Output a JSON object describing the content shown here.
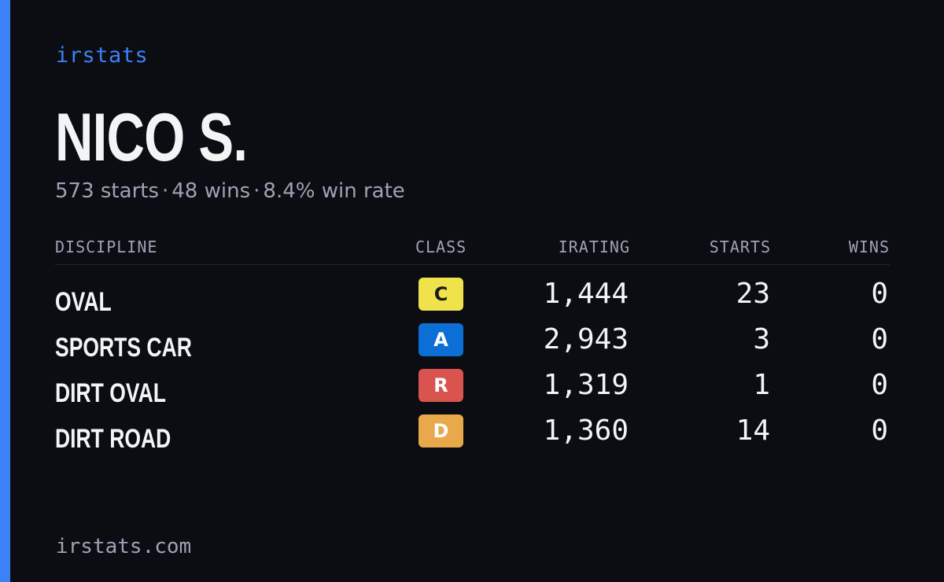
{
  "brand": "irstats",
  "driver": {
    "name": "NICO S."
  },
  "summary": {
    "starts": "573 starts",
    "wins": "48 wins",
    "win_rate": "8.4% win rate",
    "separator": "·"
  },
  "table": {
    "headers": {
      "discipline": "DISCIPLINE",
      "class": "CLASS",
      "irating": "IRATING",
      "starts": "STARTS",
      "wins": "WINS"
    },
    "rows": [
      {
        "discipline": "OVAL",
        "class": "C",
        "class_bg": "#f0e24a",
        "class_fg": "#1a1a1a",
        "irating": "1,444",
        "starts": "23",
        "wins": "0"
      },
      {
        "discipline": "SPORTS CAR",
        "class": "A",
        "class_bg": "#0b6fd6",
        "class_fg": "#ffffff",
        "irating": "2,943",
        "starts": "3",
        "wins": "0"
      },
      {
        "discipline": "DIRT OVAL",
        "class": "R",
        "class_bg": "#d9534f",
        "class_fg": "#ffffff",
        "irating": "1,319",
        "starts": "1",
        "wins": "0"
      },
      {
        "discipline": "DIRT ROAD",
        "class": "D",
        "class_bg": "#e9a94a",
        "class_fg": "#ffffff",
        "irating": "1,360",
        "starts": "14",
        "wins": "0"
      }
    ]
  },
  "footer": "irstats.com",
  "colors": {
    "accent": "#3b82f6",
    "background": "#0b0d13",
    "text_primary": "#f3f4f6",
    "text_muted": "#9ca3b4"
  }
}
